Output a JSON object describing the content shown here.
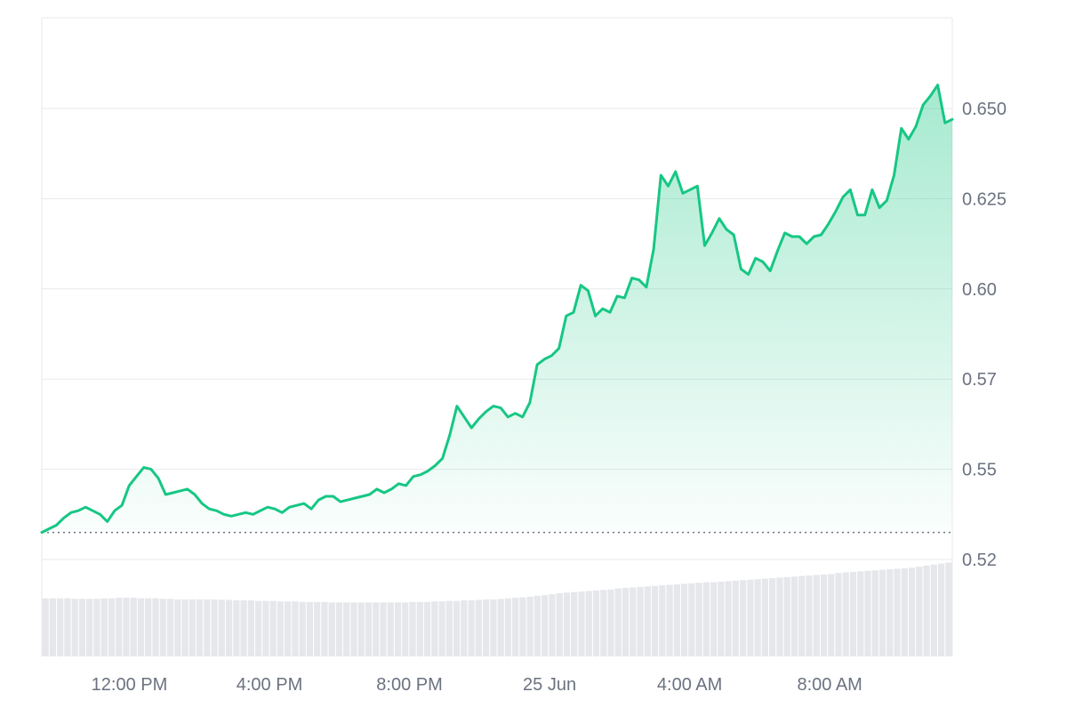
{
  "colors": {
    "line": "#16c784",
    "area_top": "#16c784",
    "grid": "#e8eaed",
    "baseline": "#6b7280",
    "volume": "#e5e7eb",
    "axis_text": "#6b7280"
  },
  "chart_data": {
    "type": "area",
    "title": "",
    "xlabel": "",
    "ylabel": "",
    "ylim": [
      0.5,
      0.676
    ],
    "y_ticks": [
      0.65,
      0.625,
      0.6,
      0.575,
      0.55,
      0.525
    ],
    "y_tick_labels": [
      "0.650",
      "0.625",
      "0.60",
      "0.57",
      "0.55",
      "0.52"
    ],
    "x_range_hours": [
      9.5,
      35.5
    ],
    "x_ticks": [
      {
        "label": "12:00 PM",
        "t": 12
      },
      {
        "label": "4:00 PM",
        "t": 16
      },
      {
        "label": "8:00 PM",
        "t": 20
      },
      {
        "label": "25 Jun",
        "t": 24
      },
      {
        "label": "4:00 AM",
        "t": 28
      },
      {
        "label": "8:00 AM",
        "t": 32
      }
    ],
    "baseline_value": 0.5325,
    "grid": true,
    "series": [
      {
        "values": [
          0.5325,
          0.5335,
          0.5345,
          0.5365,
          0.538,
          0.5385,
          0.5395,
          0.5385,
          0.5375,
          0.5355,
          0.5385,
          0.54,
          0.5455,
          0.548,
          0.5505,
          0.55,
          0.5475,
          0.543,
          0.5435,
          0.544,
          0.5445,
          0.543,
          0.5405,
          0.539,
          0.5385,
          0.5375,
          0.537,
          0.5375,
          0.538,
          0.5375,
          0.5385,
          0.5395,
          0.539,
          0.538,
          0.5395,
          0.54,
          0.5405,
          0.539,
          0.5415,
          0.5425,
          0.5425,
          0.541,
          0.5415,
          0.542,
          0.5425,
          0.543,
          0.5445,
          0.5435,
          0.5445,
          0.546,
          0.5455,
          0.548,
          0.5485,
          0.5495,
          0.551,
          0.553,
          0.5595,
          0.5675,
          0.5645,
          0.5615,
          0.564,
          0.566,
          0.5675,
          0.567,
          0.5645,
          0.5655,
          0.5645,
          0.5685,
          0.579,
          0.5805,
          0.5815,
          0.5835,
          0.5925,
          0.5935,
          0.601,
          0.5995,
          0.5925,
          0.5945,
          0.5935,
          0.598,
          0.5975,
          0.603,
          0.6025,
          0.6005,
          0.611,
          0.6315,
          0.6285,
          0.6325,
          0.6265,
          0.6275,
          0.6285,
          0.612,
          0.6155,
          0.6195,
          0.6165,
          0.615,
          0.6055,
          0.604,
          0.6085,
          0.6075,
          0.605,
          0.6105,
          0.6155,
          0.6145,
          0.6145,
          0.6125,
          0.6145,
          0.615,
          0.618,
          0.6215,
          0.6255,
          0.6275,
          0.6205,
          0.6205,
          0.6275,
          0.6225,
          0.6245,
          0.6315,
          0.6445,
          0.6415,
          0.645,
          0.651,
          0.6535,
          0.6565,
          0.646,
          0.647
        ]
      }
    ],
    "volume": [
      0.112,
      0.112,
      0.112,
      0.112,
      0.111,
      0.111,
      0.111,
      0.111,
      0.112,
      0.112,
      0.113,
      0.113,
      0.113,
      0.112,
      0.112,
      0.112,
      0.111,
      0.111,
      0.11,
      0.11,
      0.11,
      0.11,
      0.11,
      0.11,
      0.109,
      0.109,
      0.108,
      0.108,
      0.108,
      0.107,
      0.107,
      0.107,
      0.106,
      0.106,
      0.106,
      0.105,
      0.105,
      0.105,
      0.105,
      0.104,
      0.104,
      0.104,
      0.104,
      0.104,
      0.104,
      0.104,
      0.104,
      0.104,
      0.104,
      0.104,
      0.105,
      0.105,
      0.105,
      0.106,
      0.106,
      0.107,
      0.107,
      0.108,
      0.108,
      0.109,
      0.11,
      0.11,
      0.111,
      0.112,
      0.113,
      0.114,
      0.115,
      0.117,
      0.118,
      0.12,
      0.122,
      0.123,
      0.124,
      0.125,
      0.126,
      0.127,
      0.128,
      0.129,
      0.131,
      0.132,
      0.133,
      0.134,
      0.135,
      0.136,
      0.137,
      0.138,
      0.139,
      0.14,
      0.141,
      0.142,
      0.143,
      0.143,
      0.144,
      0.145,
      0.146,
      0.147,
      0.148,
      0.149,
      0.15,
      0.151,
      0.152,
      0.153,
      0.154,
      0.155,
      0.156,
      0.157,
      0.158,
      0.159,
      0.161,
      0.162,
      0.163,
      0.164,
      0.165,
      0.166,
      0.167,
      0.168,
      0.169,
      0.17,
      0.171,
      0.173,
      0.175,
      0.177,
      0.179,
      0.181
    ]
  }
}
